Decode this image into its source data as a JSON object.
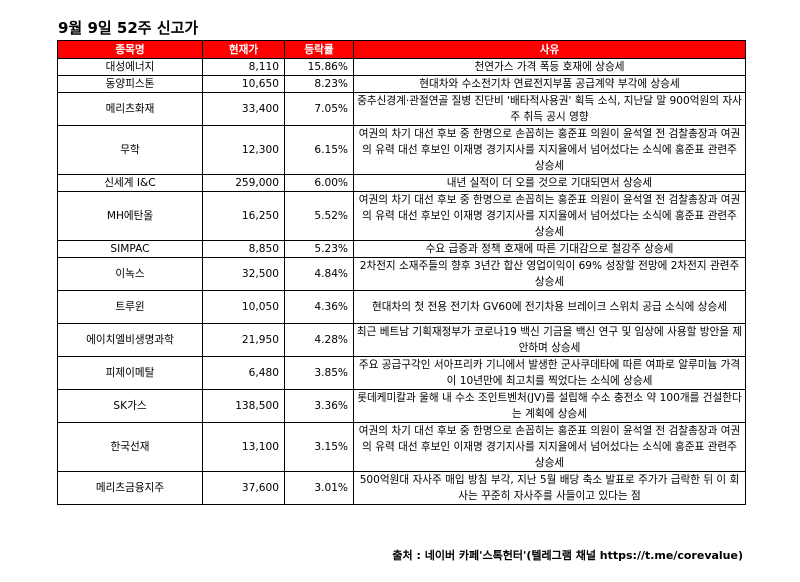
{
  "title": "9월 9일 52주 신고가",
  "header": {
    "name": "종목명",
    "price": "현재가",
    "change": "등락률",
    "reason": "사유"
  },
  "rows": [
    {
      "name": "대성에너지",
      "price": "8,110",
      "change": "15.86%",
      "reason": "천연가스 가격 폭등 호재에 상승세"
    },
    {
      "name": "동양피스톤",
      "price": "10,650",
      "change": "8.23%",
      "reason": "현대차와 수소전기차 연료전지부품 공급계약 부각에 상승세"
    },
    {
      "name": "메리츠화재",
      "price": "33,400",
      "change": "7.05%",
      "reason": "중추신경계·관절연골 질병 진단비 '배타적사용권' 획득 소식, 지난달 말 900억원의 자사주 취득 공시 영향"
    },
    {
      "name": "무학",
      "price": "12,300",
      "change": "6.15%",
      "reason": "여권의 차기 대선 후보 중 한명으로 손꼽히는 홍준표 의원이 윤석열 전 검찰총장과 여권의 유력 대선 후보인 이재명 경기지사를 지지율에서 넘어섰다는 소식에 홍준표 관련주 상승세"
    },
    {
      "name": "신세계 I&C",
      "price": "259,000",
      "change": "6.00%",
      "reason": "내년 실적이 더 오를 것으로 기대되면서 상승세"
    },
    {
      "name": "MH에탄올",
      "price": "16,250",
      "change": "5.52%",
      "reason": "여권의 차기 대선 후보 중 한명으로 손꼽히는 홍준표 의원이 윤석열 전 검찰총장과 여권의 유력 대선 후보인 이재명 경기지사를 지지율에서 넘어섰다는 소식에 홍준표 관련주 상승세"
    },
    {
      "name": "SIMPAC",
      "price": "8,850",
      "change": "5.23%",
      "reason": "수요 급증과 정책 호재에 따른 기대감으로 철강주 상승세"
    },
    {
      "name": "이녹스",
      "price": "32,500",
      "change": "4.84%",
      "reason": "2차전지 소재주들의 향후 3년간 합산 영업이익이 69% 성장할 전망에 2차전지 관련주 상승세"
    },
    {
      "name": "트루윈",
      "price": "10,050",
      "change": "4.36%",
      "reason": "현대차의 첫 전용 전기차 GV60에 전기차용 브레이크 스위치 공급 소식에 상승세"
    },
    {
      "name": "에이치엘비생명과학",
      "price": "21,950",
      "change": "4.28%",
      "reason": "최근 베트남 기획재정부가 코로나19 백신 기금을 백신 연구 및 임상에 사용할 방안을 제안하며 상승세"
    },
    {
      "name": "피제이메탈",
      "price": "6,480",
      "change": "3.85%",
      "reason": "주요 공급구각인 서아프리카 기니에서 발생한 군사쿠데타에 따른 여파로 알루미늄 가격이 10년만에 최고치를 찍었다는 소식에 상승세"
    },
    {
      "name": "SK가스",
      "price": "138,500",
      "change": "3.36%",
      "reason": "롯데케미칼과 울해 내 수소 조인트벤처(JV)를 설립해 수소 충전소 약 100개를 건설한다는 계획에 상승세"
    },
    {
      "name": "한국선재",
      "price": "13,100",
      "change": "3.15%",
      "reason": "여권의 차기 대선 후보 중 한명으로 손꼽히는 홍준표 의원이 윤석열 전 검찰총장과 여권의 유력 대선 후보인 이재명 경기지사를 지지율에서 넘어섰다는 소식에 홍준표 관련주 상승세"
    },
    {
      "name": "메리츠금융지주",
      "price": "37,600",
      "change": "3.01%",
      "reason": "500억원대 자사주 매입 방침 부각, 지난 5월 배당 축소 발표로 주가가 급락한 뒤 이 회사는 꾸준히 자사주를 사들이고 있다는 점"
    }
  ],
  "source": "출처 : 네이버 카페'스톡헌터'(텔레그램 채널 https://t.me/corevalue)"
}
